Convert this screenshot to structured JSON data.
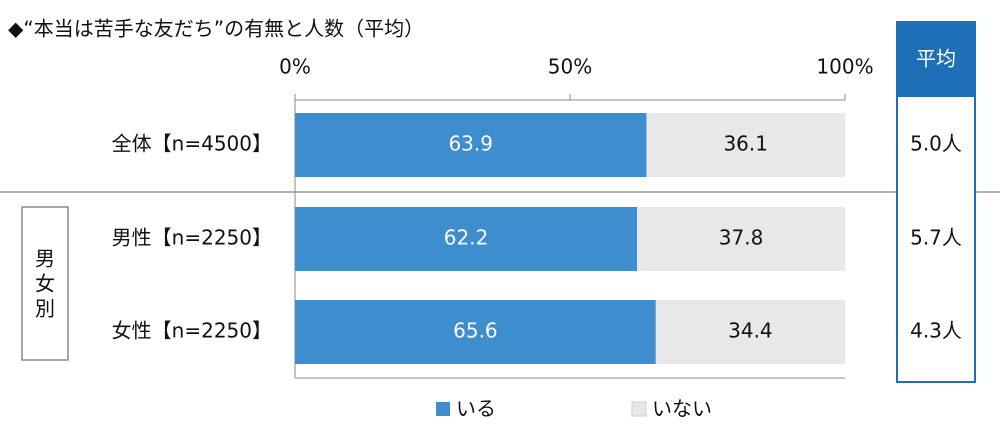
{
  "chart_data": {
    "type": "stacked-bar-horizontal",
    "title": "◆“本当は苦手な友だち”の有無と人数（平均）",
    "categories": [
      "全体【n=4500】",
      "男性【n=2250】",
      "女性【n=2250】"
    ],
    "group_label": "男女別",
    "series": [
      {
        "name": "いる",
        "color": "#3d8dcf",
        "values": [
          63.9,
          62.2,
          65.6
        ]
      },
      {
        "name": "いない",
        "color": "#e8e8e8",
        "values": [
          36.1,
          37.8,
          34.4
        ]
      }
    ],
    "xlim": [
      0,
      100
    ],
    "xticks": [
      {
        "value": 0,
        "label": "0%"
      },
      {
        "value": 50,
        "label": "50%"
      },
      {
        "value": 100,
        "label": "100%"
      }
    ],
    "averages": {
      "header": "平均",
      "values": [
        5.0,
        5.7,
        4.3
      ],
      "value_labels": [
        "5.0人",
        "5.7人",
        "4.3人"
      ]
    }
  }
}
